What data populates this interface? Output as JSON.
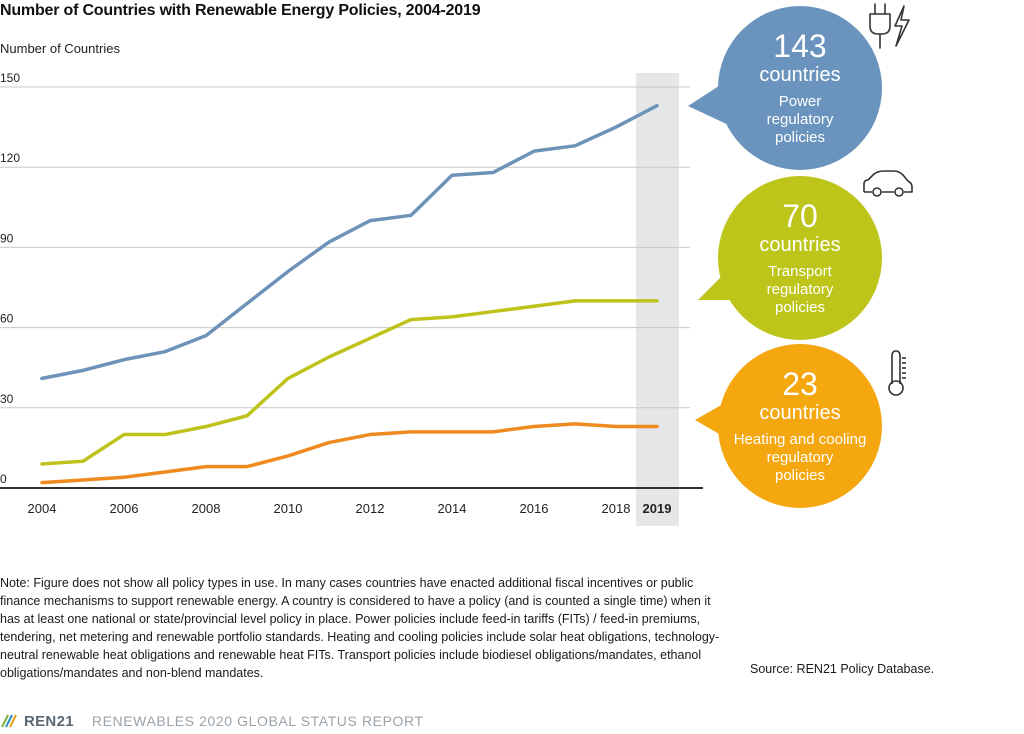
{
  "title": "Number of Countries with Renewable Energy Policies, 2004-2019",
  "colors": {
    "power": "#6e93b9",
    "transport": "#bfc21a",
    "heating": "#ef8a1f",
    "power_bubble": "#6a94bd",
    "transport_bubble": "#bdc41a",
    "heating_bubble": "#f4a70f",
    "highlight": "#e4e6e8",
    "grid": "#c9c9c9"
  },
  "chart_data": {
    "type": "line",
    "title": "Number of Countries with Renewable Energy Policies, 2004-2019",
    "xlabel": "",
    "ylabel": "Number of Countries",
    "x": [
      2004,
      2005,
      2006,
      2007,
      2008,
      2009,
      2010,
      2011,
      2012,
      2013,
      2014,
      2015,
      2016,
      2017,
      2018,
      2019
    ],
    "x_tick_labels": [
      "2004",
      "2006",
      "2008",
      "2010",
      "2012",
      "2014",
      "2016",
      "2018",
      "2019"
    ],
    "highlight_x": "2019",
    "y_ticks": [
      0,
      30,
      60,
      90,
      120,
      150
    ],
    "ylim": [
      0,
      150
    ],
    "grid": true,
    "series": [
      {
        "name": "Power regulatory policies",
        "key": "power",
        "values": [
          41,
          44,
          48,
          51,
          57,
          69,
          81,
          92,
          100,
          102,
          117,
          118,
          126,
          128,
          135,
          143
        ]
      },
      {
        "name": "Transport regulatory policies",
        "key": "transport",
        "values": [
          9,
          10,
          20,
          20,
          23,
          27,
          41,
          49,
          56,
          63,
          64,
          66,
          68,
          70,
          70,
          70
        ]
      },
      {
        "name": "Heating and cooling regulatory policies",
        "key": "heating",
        "values": [
          2,
          3,
          4,
          6,
          8,
          8,
          12,
          17,
          20,
          21,
          21,
          21,
          23,
          24,
          23,
          23
        ]
      }
    ]
  },
  "bubbles": [
    {
      "key": "power",
      "number": "143",
      "unit": "countries",
      "lines": [
        "Power",
        "regulatory",
        "policies"
      ],
      "icon": "plug-lightning-icon"
    },
    {
      "key": "transport",
      "number": "70",
      "unit": "countries",
      "lines": [
        "Transport",
        "regulatory",
        "policies"
      ],
      "icon": "car-icon"
    },
    {
      "key": "heating",
      "number": "23",
      "unit": "countries",
      "lines": [
        "Heating and cooling",
        "regulatory",
        "policies"
      ],
      "icon": "thermometer-icon"
    }
  ],
  "note": "Note: Figure does not show all policy types in use. In many cases countries have enacted additional fiscal incentives or public finance mechanisms to support renewable energy. A country is considered to have a policy (and is counted a single time) when it has at least one national or state/provincial level policy in place. Power policies include feed-in tariffs (FITs) / feed-in premiums, tendering, net metering and renewable portfolio standards. Heating and cooling policies include solar heat obligations, technology-neutral renewable heat obligations and renewable heat FITs. Transport policies include biodiesel obligations/mandates, ethanol obligations/mandates and non-blend mandates.",
  "source": "Source: REN21 Policy Database.",
  "footer": {
    "brand": "REN21",
    "report": "RENEWABLES 2020 GLOBAL STATUS REPORT"
  }
}
